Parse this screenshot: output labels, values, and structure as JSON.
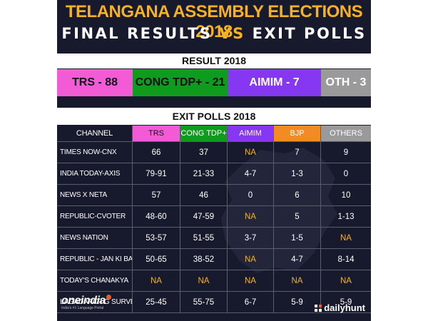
{
  "title": {
    "line1": "TELANGANA ASSEMBLY ELECTIONS 2018",
    "line2_a": "FINAL RESULTS",
    "line2_vs": "VS",
    "line2_b": "EXIT POLLS"
  },
  "result": {
    "heading": "RESULT 2018",
    "items": [
      {
        "label": "TRS - 88",
        "bg": "#f35bd6",
        "fg": "#111111"
      },
      {
        "label": "CONG TDP+ - 21",
        "bg": "#0f9b1e",
        "fg": "#111111"
      },
      {
        "label": "AIMIM - 7",
        "bg": "#8637f2",
        "fg": "#ffffff"
      },
      {
        "label": "OTH - 3",
        "bg": "#9a9a9a",
        "fg": "#ffffff"
      }
    ]
  },
  "exit_polls": {
    "heading": "EXIT POLLS 2018",
    "columns": [
      {
        "label": "CHANNEL",
        "bg": "transparent",
        "fg": "#ffffff"
      },
      {
        "label": "TRS",
        "bg": "#f35bd6",
        "fg": "#111111"
      },
      {
        "label": "CONG TDP+",
        "bg": "#0f9b1e",
        "fg": "#ffffff"
      },
      {
        "label": "AIMIM",
        "bg": "#8637f2",
        "fg": "#ffffff"
      },
      {
        "label": "BJP",
        "bg": "#f28b24",
        "fg": "#ffffff"
      },
      {
        "label": "OTHERS",
        "bg": "#9a9a9a",
        "fg": "#ffffff"
      }
    ],
    "rows": [
      {
        "channel": "TIMES NOW-CNX",
        "values": [
          "66",
          "37",
          "NA",
          "7",
          "9"
        ]
      },
      {
        "channel": "INDIA TODAY-AXIS",
        "values": [
          "79-91",
          "21-33",
          "4-7",
          "1-3",
          "0"
        ]
      },
      {
        "channel": "NEWS X NETA",
        "values": [
          "57",
          "46",
          "0",
          "6",
          "10"
        ]
      },
      {
        "channel": "REPUBLIC-CVOTER",
        "values": [
          "48-60",
          "47-59",
          "NA",
          "5",
          "1-13"
        ]
      },
      {
        "channel": "NEWS NATION",
        "values": [
          "53-57",
          "51-55",
          "3-7",
          "1-5",
          "NA"
        ]
      },
      {
        "channel": "REPUBLIC - JAN KI BAAT",
        "values": [
          "50-65",
          "38-52",
          "NA",
          "4-7",
          "8-14"
        ]
      },
      {
        "channel": "TODAY'S CHANAKYA",
        "values": [
          "NA",
          "NA",
          "NA",
          "NA",
          "NA"
        ]
      },
      {
        "channel": "LAGADAPATI G SURVEY",
        "values": [
          "25-45",
          "55-75",
          "6-7",
          "5-9",
          "5-9"
        ]
      }
    ]
  },
  "footer": {
    "left_logo": "oneindia",
    "left_tagline": "India's #1 Language Portal",
    "right_logo": "dailyhunt",
    "right_icon": "dailyhunt-icon"
  },
  "colors": {
    "background": "#171a2c",
    "accent": "#f7b124",
    "na": "#f7b124"
  }
}
